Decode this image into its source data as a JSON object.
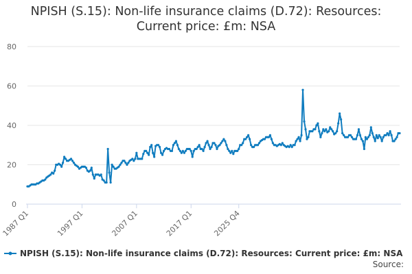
{
  "title_line1": "NPISH (S.15): Non-life insurance claims (D.72): Resources:",
  "title_line2": "Current price: £m: NSA",
  "source_label": "Source:",
  "colors": {
    "series": "#0f7cbf",
    "grid": "#e6e6e6",
    "axis": "#ccd6eb",
    "tick_text": "#666666"
  },
  "chart_data": {
    "type": "line",
    "title": "NPISH (S.15): Non-life insurance claims (D.72): Resources: Current price: £m: NSA",
    "xlabel": "",
    "ylabel": "",
    "x_tick_labels": [
      "1987 Q1",
      "1997 Q1",
      "2007 Q1",
      "2017 Q1",
      "2025 Q4"
    ],
    "y_tick_labels": [
      "0",
      "20",
      "40",
      "60",
      "80"
    ],
    "ylim": [
      0,
      80
    ],
    "grid": true,
    "legend_position": "bottom",
    "x_start": "1987 Q1",
    "x_end": "2025 Q4",
    "series": [
      {
        "name": "NPISH (S.15): Non-life insurance claims (D.72): Resources: Current price: £m: NSA",
        "values": [
          9,
          9,
          9.5,
          10,
          10,
          10,
          10,
          10.5,
          10.5,
          11,
          11.5,
          12,
          12,
          12.5,
          13.5,
          14,
          14.5,
          15,
          16,
          15.5,
          17,
          20,
          20,
          20.5,
          20,
          19,
          21,
          24,
          23,
          22,
          22,
          22.5,
          23,
          22,
          21,
          20,
          19.5,
          19,
          18,
          18.5,
          19,
          19,
          19,
          18.5,
          17,
          16.5,
          17,
          18.5,
          15,
          13,
          15,
          15,
          15,
          14.5,
          15,
          12.5,
          12,
          11,
          11,
          28,
          16,
          11,
          20,
          19,
          18,
          18,
          18.5,
          19,
          20,
          21,
          22,
          22,
          21,
          20,
          21,
          22,
          22.5,
          23,
          22,
          23,
          26,
          23,
          23,
          23,
          23,
          25.5,
          27,
          27,
          26,
          25,
          29,
          30,
          26,
          24,
          29.5,
          30,
          30,
          29,
          26,
          25,
          27,
          28,
          28.5,
          28,
          28,
          27,
          27,
          30,
          31,
          32,
          30,
          28,
          27,
          26,
          27,
          26,
          27,
          28,
          28,
          28,
          27,
          24,
          27,
          28,
          28,
          29,
          30,
          28,
          28,
          27,
          29,
          31,
          32,
          30,
          28,
          29,
          31,
          31,
          30,
          28,
          29.5,
          30,
          31,
          32,
          33,
          32,
          30,
          28,
          27,
          26,
          27,
          25.5,
          27,
          27,
          27,
          28,
          30,
          30,
          31,
          33,
          33,
          34,
          35,
          33,
          30,
          29,
          29,
          30,
          30,
          30,
          31,
          32,
          32.5,
          33,
          33,
          34,
          34,
          34,
          35,
          33,
          31,
          30,
          30,
          29.5,
          30,
          30.5,
          30,
          31,
          30,
          29.5,
          29,
          29.5,
          29,
          30,
          29,
          30,
          30,
          32,
          33,
          34,
          32,
          35,
          58,
          42,
          38,
          33,
          34,
          37,
          37,
          37,
          38,
          38,
          40,
          41,
          37,
          34,
          36,
          38,
          37,
          38,
          36.5,
          37,
          39,
          38,
          37,
          35.5,
          36,
          37,
          41,
          46,
          43,
          36,
          35,
          34,
          34,
          34,
          35,
          35,
          34,
          33,
          33,
          33,
          35,
          38,
          35,
          33,
          32,
          28,
          34,
          33,
          34,
          35,
          39,
          36,
          34,
          32,
          35,
          33.5,
          35,
          34,
          32,
          34,
          35,
          35,
          36,
          35,
          37,
          35,
          32,
          32,
          33,
          34,
          36,
          36
        ]
      }
    ]
  }
}
